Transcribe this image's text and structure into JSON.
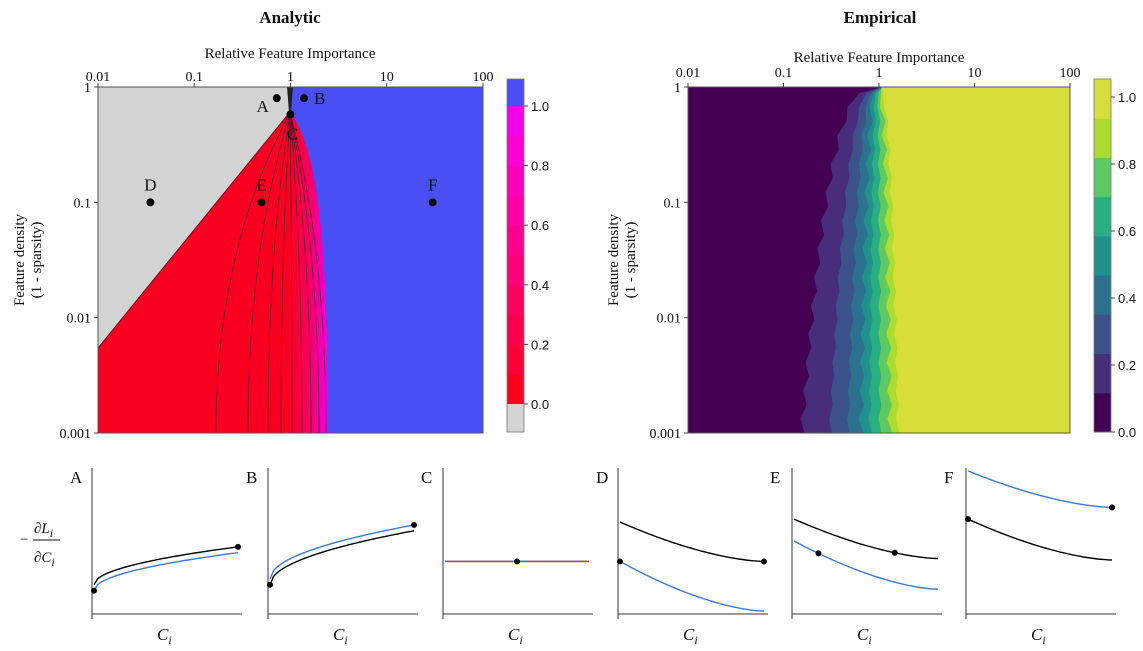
{
  "chart_data": [
    {
      "id": "analytic",
      "type": "heatmap",
      "title": "Analytic",
      "xlabel": "Relative Feature Importance",
      "ylabel": [
        "Feature density",
        "(1 - sparsity)"
      ],
      "x_scale": "log",
      "y_scale": "log",
      "xlim": [
        0.01,
        100
      ],
      "ylim": [
        0.001,
        1
      ],
      "x_ticks": [
        {
          "v": 0.01,
          "label": "0.01"
        },
        {
          "v": 0.1,
          "label": "0.1"
        },
        {
          "v": 1,
          "label": "1"
        },
        {
          "v": 10,
          "label": "10"
        },
        {
          "v": 100,
          "label": "100"
        }
      ],
      "y_ticks": [
        {
          "v": 0.001,
          "label": "0.001"
        },
        {
          "v": 0.01,
          "label": "0.01"
        },
        {
          "v": 0.1,
          "label": "0.1"
        },
        {
          "v": 1,
          "label": "1"
        }
      ],
      "xaxis_position": "top",
      "regions": {
        "gray_color": "#d3d3d3",
        "blue_color": "#4a4ef5",
        "red_color": "#fa0020",
        "magenta_color": "#ee00e8"
      },
      "points": [
        {
          "label": "A",
          "x": 0.72,
          "y": 0.8
        },
        {
          "label": "B",
          "x": 1.38,
          "y": 0.8
        },
        {
          "label": "C",
          "x": 1.0,
          "y": 0.58
        },
        {
          "label": "D",
          "x": 0.035,
          "y": 0.1
        },
        {
          "label": "E",
          "x": 0.5,
          "y": 0.1
        },
        {
          "label": "F",
          "x": 30,
          "y": 0.1
        }
      ],
      "colorbar": {
        "ticks": [
          {
            "v": 0.0,
            "label": "0.0"
          },
          {
            "v": 0.2,
            "label": "0.2"
          },
          {
            "v": 0.4,
            "label": "0.4"
          },
          {
            "v": 0.6,
            "label": "0.6"
          },
          {
            "v": 0.8,
            "label": "0.8"
          },
          {
            "v": 1.0,
            "label": "1.0"
          }
        ],
        "extra_low_color": "#d3d3d3",
        "extra_high_color": "#4a4ef5"
      }
    },
    {
      "id": "empirical",
      "type": "heatmap",
      "title": "Empirical",
      "xlabel": "Relative Feature Importance",
      "ylabel": [
        "Feature density",
        "(1 - sparsity)"
      ],
      "x_scale": "log",
      "y_scale": "log",
      "xlim": [
        0.01,
        100
      ],
      "ylim": [
        0.001,
        1
      ],
      "x_ticks": [
        {
          "v": 0.01,
          "label": "0.01"
        },
        {
          "v": 0.1,
          "label": "0.1"
        },
        {
          "v": 1,
          "label": "1"
        },
        {
          "v": 10,
          "label": "10"
        },
        {
          "v": 100,
          "label": "100"
        }
      ],
      "y_ticks": [
        {
          "v": 0.001,
          "label": "0.001"
        },
        {
          "v": 0.01,
          "label": "0.01"
        },
        {
          "v": 0.1,
          "label": "0.1"
        },
        {
          "v": 1,
          "label": "1"
        }
      ],
      "xaxis_position": "top",
      "level_colors": [
        "#440154",
        "#472d7b",
        "#3b528b",
        "#2c728e",
        "#21918c",
        "#28ae80",
        "#5ec962",
        "#addc30",
        "#d7de3c"
      ],
      "colorbar": {
        "ticks": [
          {
            "v": 0.0,
            "label": "0.0"
          },
          {
            "v": 0.2,
            "label": "0.2"
          },
          {
            "v": 0.4,
            "label": "0.4"
          },
          {
            "v": 0.6,
            "label": "0.6"
          },
          {
            "v": 0.8,
            "label": "0.8"
          },
          {
            "v": 1.0,
            "label": "1.0"
          }
        ]
      }
    },
    {
      "id": "derivative-panels",
      "type": "line",
      "ylabel": "−∂L_i/∂C_i",
      "xlabel": "C_i",
      "line_colors": {
        "black": "#000000",
        "blue": "#3a78d8"
      },
      "panels": [
        {
          "label": "A",
          "black": [
            0.2,
            0.46
          ],
          "blue": [
            0.16,
            0.42
          ],
          "shape": "concave",
          "dots": [
            {
              "series": "blue",
              "x": 0.0
            },
            {
              "series": "black",
              "x": 1.0
            }
          ]
        },
        {
          "label": "B",
          "black": [
            0.2,
            0.57
          ],
          "blue": [
            0.24,
            0.61
          ],
          "shape": "concave",
          "dots": [
            {
              "series": "black",
              "x": 0.0
            },
            {
              "series": "blue",
              "x": 1.0
            }
          ]
        },
        {
          "label": "C",
          "black": [
            0.36,
            0.36
          ],
          "blue": [
            0.36,
            0.36
          ],
          "shape": "flat",
          "dots": [
            {
              "series": "black",
              "x": 0.5
            }
          ]
        },
        {
          "label": "D",
          "black": [
            0.63,
            0.36
          ],
          "blue": [
            0.36,
            0.02
          ],
          "shape": "convex",
          "dots": [
            {
              "series": "blue",
              "x": 0.0
            },
            {
              "series": "black",
              "x": 1.0
            }
          ]
        },
        {
          "label": "E",
          "black": [
            0.65,
            0.38
          ],
          "blue": [
            0.5,
            0.17
          ],
          "shape": "convex",
          "dots": [
            {
              "series": "blue",
              "x": 0.17
            },
            {
              "series": "black",
              "x": 0.7
            }
          ]
        },
        {
          "label": "F",
          "black": [
            0.65,
            0.37
          ],
          "blue": [
            0.98,
            0.73
          ],
          "shape": "convex",
          "dots": [
            {
              "series": "black",
              "x": 0.0
            },
            {
              "series": "blue",
              "x": 1.0
            }
          ]
        }
      ]
    }
  ]
}
